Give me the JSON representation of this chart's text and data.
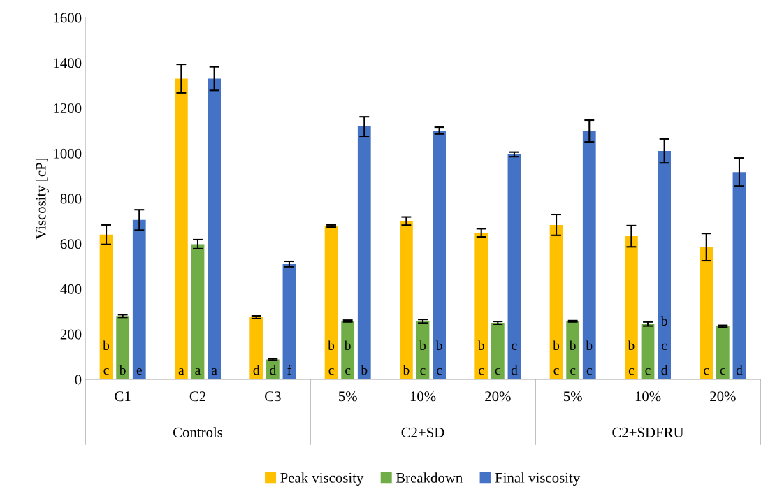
{
  "chart_data": {
    "type": "bar",
    "ylabel": "Viscosity [cP]",
    "categories": [
      "C1",
      "C2",
      "C3",
      "5%",
      "10%",
      "20%",
      "5%",
      "10%",
      "20%"
    ],
    "series": [
      {
        "name": "Peak viscosity",
        "color": "#ffc000",
        "values": [
          640,
          1330,
          275,
          678,
          700,
          648,
          683,
          633,
          585
        ],
        "errors": [
          43,
          63,
          6,
          5,
          18,
          18,
          46,
          47,
          60
        ],
        "value_labels": [
          "b\nc",
          "a",
          "d",
          "b\nc",
          "b",
          "b\nc",
          "b\nc",
          "b\nc",
          "c"
        ]
      },
      {
        "name": "Breakdown",
        "color": "#70ad47",
        "values": [
          280,
          598,
          88,
          258,
          257,
          250,
          257,
          245,
          235
        ],
        "errors": [
          6,
          20,
          3,
          4,
          8,
          6,
          3,
          9,
          4
        ],
        "value_labels": [
          "b",
          "a",
          "d",
          "b\nc",
          "b\nc",
          "c",
          "b\nc",
          "c",
          "c"
        ]
      },
      {
        "name": "Final viscosity",
        "color": "#4472c4",
        "values": [
          705,
          1330,
          510,
          1118,
          1100,
          995,
          1098,
          1010,
          917
        ],
        "errors": [
          45,
          52,
          12,
          43,
          15,
          10,
          48,
          53,
          62
        ],
        "value_labels": [
          "e",
          "a",
          "f",
          "b",
          "b\nc",
          "c\nd",
          "b\nc",
          "b\nc\nd",
          "d"
        ]
      }
    ],
    "annotations": [
      "Controls",
      "C2+SD",
      "C2+SDFRU"
    ],
    "ylim": [
      0,
      1600
    ],
    "yticks": [
      0,
      200,
      400,
      600,
      800,
      1000,
      1200,
      1400,
      1600
    ],
    "grid": false,
    "legend": "bottom"
  }
}
